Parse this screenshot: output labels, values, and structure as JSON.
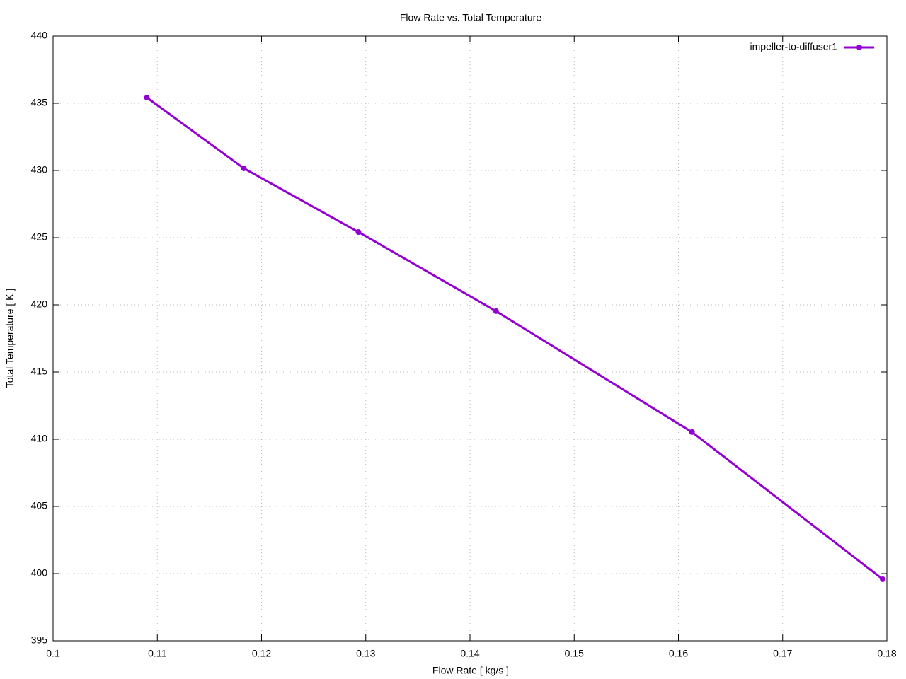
{
  "chart_data": {
    "type": "line",
    "title": "Flow Rate vs. Total Temperature",
    "x_label": "Flow Rate [ kg/s ]",
    "y_label": "Total Temperature [ K ]",
    "x": [
      0.109,
      0.1183,
      0.1293,
      0.1425,
      0.1613,
      0.1796
    ],
    "series": [
      {
        "name": "impeller-to-diffuser1",
        "color": "#9400d3",
        "values": [
          435.42,
          430.16,
          425.42,
          419.53,
          410.53,
          399.58
        ]
      }
    ],
    "xlim": [
      0.1,
      0.18
    ],
    "ylim": [
      395,
      440
    ],
    "xticks": [
      0.1,
      0.11,
      0.12,
      0.13,
      0.14,
      0.15,
      0.16,
      0.17,
      0.18
    ],
    "yticks": [
      395,
      400,
      405,
      410,
      415,
      420,
      425,
      430,
      435,
      440
    ],
    "grid": true,
    "legend": "top-right"
  }
}
